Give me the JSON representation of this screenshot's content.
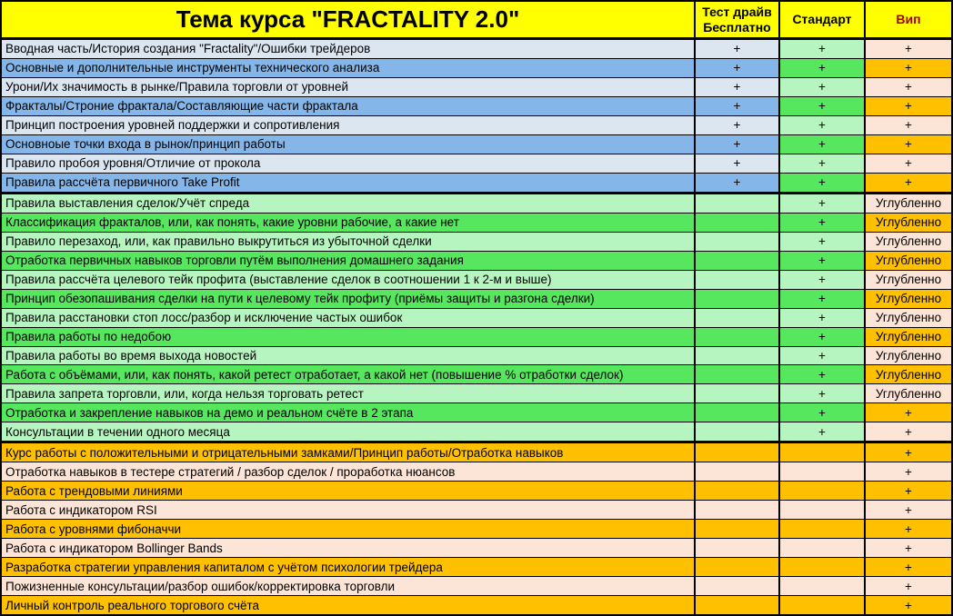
{
  "header": {
    "title": "Тема курса \"FRACTALITY 2.0\"",
    "columns": [
      {
        "label": "Тест драйв Бесплатно",
        "line1": "Тест драйв",
        "line2": "Бесплатно"
      },
      {
        "label": "Стандарт"
      },
      {
        "label": "Вип"
      }
    ]
  },
  "colors": {
    "header_bg": "#FFFF00",
    "vip_header_text": "#A00000",
    "blue_light": "#DCE6F1",
    "blue_dark": "#84B6EA",
    "green_light": "#B7F5C0",
    "green_dark": "#56E75E",
    "orange": "#FFC000",
    "peach": "#FCE4D6"
  },
  "marks": {
    "included": "+",
    "advanced": "Углубленно",
    "empty": ""
  },
  "rows": [
    {
      "topic": "Вводная часть/История создания \"Fractality\"/Ошибки трейдеров",
      "topic_bg": "#DCE6F1",
      "test_drive": {
        "text": "+",
        "bg": "#DCE6F1"
      },
      "standard": {
        "text": "+",
        "bg": "#B7F5C0"
      },
      "vip": {
        "text": "+",
        "bg": "#FCE4D6"
      },
      "thick_bottom": false
    },
    {
      "topic": "Основные и дополнительные инструменты технического анализа",
      "topic_bg": "#84B6EA",
      "test_drive": {
        "text": "+",
        "bg": "#84B6EA"
      },
      "standard": {
        "text": "+",
        "bg": "#56E75E"
      },
      "vip": {
        "text": "+",
        "bg": "#FFC000"
      },
      "thick_bottom": false
    },
    {
      "topic": "Урони/Их значимость в рынке/Правила торговли от уровней",
      "topic_bg": "#DCE6F1",
      "test_drive": {
        "text": "+",
        "bg": "#DCE6F1"
      },
      "standard": {
        "text": "+",
        "bg": "#B7F5C0"
      },
      "vip": {
        "text": "+",
        "bg": "#FCE4D6"
      },
      "thick_bottom": false
    },
    {
      "topic": "Фракталы/Строние фрактала/Составляющие части фрактала",
      "topic_bg": "#84B6EA",
      "test_drive": {
        "text": "+",
        "bg": "#84B6EA"
      },
      "standard": {
        "text": "+",
        "bg": "#56E75E"
      },
      "vip": {
        "text": "+",
        "bg": "#FFC000"
      },
      "thick_bottom": false
    },
    {
      "topic": "Принцип построения уровней поддержки и сопротивления",
      "topic_bg": "#DCE6F1",
      "test_drive": {
        "text": "+",
        "bg": "#DCE6F1"
      },
      "standard": {
        "text": "+",
        "bg": "#B7F5C0"
      },
      "vip": {
        "text": "+",
        "bg": "#FCE4D6"
      },
      "thick_bottom": false
    },
    {
      "topic": "Основноые точки входа в рынок/принцип работы",
      "topic_bg": "#84B6EA",
      "test_drive": {
        "text": "+",
        "bg": "#84B6EA"
      },
      "standard": {
        "text": "+",
        "bg": "#56E75E"
      },
      "vip": {
        "text": "+",
        "bg": "#FFC000"
      },
      "thick_bottom": false
    },
    {
      "topic": "Правило пробоя уровня/Отличие от прокола",
      "topic_bg": "#DCE6F1",
      "test_drive": {
        "text": "+",
        "bg": "#DCE6F1"
      },
      "standard": {
        "text": "+",
        "bg": "#B7F5C0"
      },
      "vip": {
        "text": "+",
        "bg": "#FCE4D6"
      },
      "thick_bottom": false
    },
    {
      "topic": "Правила рассчёта первичного Take Profit",
      "topic_bg": "#84B6EA",
      "test_drive": {
        "text": "+",
        "bg": "#84B6EA"
      },
      "standard": {
        "text": "+",
        "bg": "#56E75E"
      },
      "vip": {
        "text": "+",
        "bg": "#FFC000"
      },
      "thick_bottom": true
    },
    {
      "topic": "Правила выставления сделок/Учёт спреда",
      "topic_bg": "#B7F5C0",
      "test_drive": {
        "text": "",
        "bg": "#B7F5C0"
      },
      "standard": {
        "text": "+",
        "bg": "#B7F5C0"
      },
      "vip": {
        "text": "Углубленно",
        "bg": "#FCE4D6"
      },
      "thick_bottom": false
    },
    {
      "topic": "Классификация фракталов, или, как понять, какие уровни рабочие, а какие нет",
      "topic_bg": "#56E75E",
      "test_drive": {
        "text": "",
        "bg": "#56E75E"
      },
      "standard": {
        "text": "+",
        "bg": "#56E75E"
      },
      "vip": {
        "text": "Углубленно",
        "bg": "#FFC000"
      },
      "thick_bottom": false
    },
    {
      "topic": "Правило перезаход, или, как правильно выкрутиться из убыточной сделки",
      "topic_bg": "#B7F5C0",
      "test_drive": {
        "text": "",
        "bg": "#B7F5C0"
      },
      "standard": {
        "text": "+",
        "bg": "#B7F5C0"
      },
      "vip": {
        "text": "Углубленно",
        "bg": "#FCE4D6"
      },
      "thick_bottom": false
    },
    {
      "topic": "Отработка первичных навыков торговли путём выполнения домашнего задания",
      "topic_bg": "#56E75E",
      "test_drive": {
        "text": "",
        "bg": "#56E75E"
      },
      "standard": {
        "text": "+",
        "bg": "#56E75E"
      },
      "vip": {
        "text": "Углубленно",
        "bg": "#FFC000"
      },
      "thick_bottom": false
    },
    {
      "topic": "Правила рассчёта целевого тейк профита (выставление сделок в соотношении 1 к 2-м и выше)",
      "topic_bg": "#B7F5C0",
      "test_drive": {
        "text": "",
        "bg": "#B7F5C0"
      },
      "standard": {
        "text": "+",
        "bg": "#B7F5C0"
      },
      "vip": {
        "text": "Углубленно",
        "bg": "#FCE4D6"
      },
      "thick_bottom": false
    },
    {
      "topic": "Принцип обезопашивания сделки на пути к целевому тейк профиту (приёмы защиты и разгона сделки)",
      "topic_bg": "#56E75E",
      "test_drive": {
        "text": "",
        "bg": "#56E75E"
      },
      "standard": {
        "text": "+",
        "bg": "#56E75E"
      },
      "vip": {
        "text": "Углубленно",
        "bg": "#FFC000"
      },
      "thick_bottom": false
    },
    {
      "topic": "Правила расстановки стоп лосс/разбор и исключение частых ошибок",
      "topic_bg": "#B7F5C0",
      "test_drive": {
        "text": "",
        "bg": "#B7F5C0"
      },
      "standard": {
        "text": "+",
        "bg": "#B7F5C0"
      },
      "vip": {
        "text": "Углубленно",
        "bg": "#FCE4D6"
      },
      "thick_bottom": false
    },
    {
      "topic": "Правила работы по недобою",
      "topic_bg": "#56E75E",
      "test_drive": {
        "text": "",
        "bg": "#56E75E"
      },
      "standard": {
        "text": "+",
        "bg": "#56E75E"
      },
      "vip": {
        "text": "Углубленно",
        "bg": "#FFC000"
      },
      "thick_bottom": false
    },
    {
      "topic": "Правила работы во время выхода новостей",
      "topic_bg": "#B7F5C0",
      "test_drive": {
        "text": "",
        "bg": "#B7F5C0"
      },
      "standard": {
        "text": "+",
        "bg": "#B7F5C0"
      },
      "vip": {
        "text": "Углубленно",
        "bg": "#FCE4D6"
      },
      "thick_bottom": false
    },
    {
      "topic": "Работа с объёмами, или, как понять, какой ретест отработает, а какой нет (повышение % отработки сделок)",
      "topic_bg": "#56E75E",
      "test_drive": {
        "text": "",
        "bg": "#56E75E"
      },
      "standard": {
        "text": "+",
        "bg": "#56E75E"
      },
      "vip": {
        "text": "Углубленно",
        "bg": "#FFC000"
      },
      "thick_bottom": false
    },
    {
      "topic": "Правила запрета торговли, или, когда нельзя торговать ретест",
      "topic_bg": "#B7F5C0",
      "test_drive": {
        "text": "",
        "bg": "#B7F5C0"
      },
      "standard": {
        "text": "+",
        "bg": "#B7F5C0"
      },
      "vip": {
        "text": "Углубленно",
        "bg": "#FCE4D6"
      },
      "thick_bottom": false
    },
    {
      "topic": "Отработка и закрепление навыков на демо и реальном счёте в 2 этапа",
      "topic_bg": "#56E75E",
      "test_drive": {
        "text": "",
        "bg": "#56E75E"
      },
      "standard": {
        "text": "+",
        "bg": "#56E75E"
      },
      "vip": {
        "text": "+",
        "bg": "#FFC000"
      },
      "thick_bottom": false
    },
    {
      "topic": "Консультации в течении одного месяца",
      "topic_bg": "#B7F5C0",
      "test_drive": {
        "text": "",
        "bg": "#B7F5C0"
      },
      "standard": {
        "text": "+",
        "bg": "#B7F5C0"
      },
      "vip": {
        "text": "+",
        "bg": "#FCE4D6"
      },
      "thick_bottom": true
    },
    {
      "topic": "Курс работы с положительными и отрицательными замками/Принцип работы/Отработка навыков",
      "topic_bg": "#FFC000",
      "test_drive": {
        "text": "",
        "bg": "#FFC000"
      },
      "standard": {
        "text": "",
        "bg": "#FFC000"
      },
      "vip": {
        "text": "+",
        "bg": "#FFC000"
      },
      "thick_bottom": false
    },
    {
      "topic": "Отработка навыков в тестере стратегий / разбор сделок / проработка нюансов",
      "topic_bg": "#FCE4D6",
      "test_drive": {
        "text": "",
        "bg": "#FCE4D6"
      },
      "standard": {
        "text": "",
        "bg": "#FCE4D6"
      },
      "vip": {
        "text": "+",
        "bg": "#FCE4D6"
      },
      "thick_bottom": false
    },
    {
      "topic": "Работа с трендовыми линиями",
      "topic_bg": "#FFC000",
      "test_drive": {
        "text": "",
        "bg": "#FFC000"
      },
      "standard": {
        "text": "",
        "bg": "#FFC000"
      },
      "vip": {
        "text": "+",
        "bg": "#FFC000"
      },
      "thick_bottom": false
    },
    {
      "topic": "Работа с индикатором RSI",
      "topic_bg": "#FCE4D6",
      "test_drive": {
        "text": "",
        "bg": "#FCE4D6"
      },
      "standard": {
        "text": "",
        "bg": "#FCE4D6"
      },
      "vip": {
        "text": "+",
        "bg": "#FCE4D6"
      },
      "thick_bottom": false
    },
    {
      "topic": "Работа с уровнями фибоначчи",
      "topic_bg": "#FFC000",
      "test_drive": {
        "text": "",
        "bg": "#FFC000"
      },
      "standard": {
        "text": "",
        "bg": "#FFC000"
      },
      "vip": {
        "text": "+",
        "bg": "#FFC000"
      },
      "thick_bottom": false
    },
    {
      "topic": "Работа с индикатором Bollinger Bands",
      "topic_bg": "#FCE4D6",
      "test_drive": {
        "text": "",
        "bg": "#FCE4D6"
      },
      "standard": {
        "text": "",
        "bg": "#FCE4D6"
      },
      "vip": {
        "text": "+",
        "bg": "#FCE4D6"
      },
      "thick_bottom": false
    },
    {
      "topic": "Разработка стратегии управления капиталом с учётом психологии трейдера",
      "topic_bg": "#FFC000",
      "test_drive": {
        "text": "",
        "bg": "#FFC000"
      },
      "standard": {
        "text": "",
        "bg": "#FFC000"
      },
      "vip": {
        "text": "+",
        "bg": "#FFC000"
      },
      "thick_bottom": false
    },
    {
      "topic": "Пожизненные консультации/разбор ошибок/корректировка торговли",
      "topic_bg": "#FCE4D6",
      "test_drive": {
        "text": "",
        "bg": "#FCE4D6"
      },
      "standard": {
        "text": "",
        "bg": "#FCE4D6"
      },
      "vip": {
        "text": "+",
        "bg": "#FCE4D6"
      },
      "thick_bottom": false
    },
    {
      "topic": "Личный контроль реального торгового счёта",
      "topic_bg": "#FFC000",
      "test_drive": {
        "text": "",
        "bg": "#FFC000"
      },
      "standard": {
        "text": "",
        "bg": "#FFC000"
      },
      "vip": {
        "text": "+",
        "bg": "#FFC000"
      },
      "thick_bottom": false
    }
  ]
}
